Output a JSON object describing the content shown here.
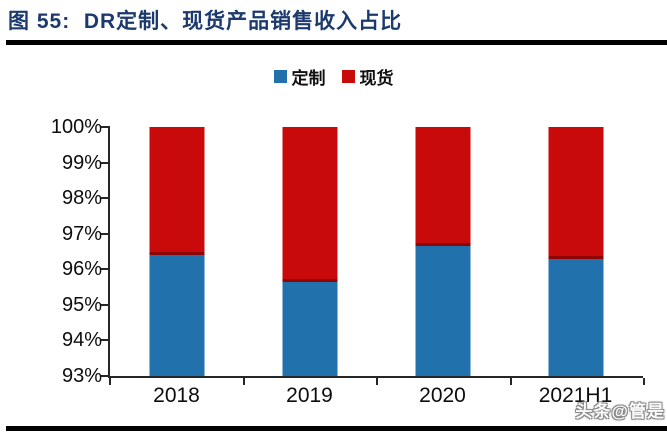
{
  "figure": {
    "title": "图 55:  DR定制、现货产品销售收入占比"
  },
  "legend": [
    {
      "label": "定制",
      "color": "#2171ad"
    },
    {
      "label": "现货",
      "color": "#c80a0a"
    }
  ],
  "watermark": {
    "text": "头条@管是"
  },
  "colors": {
    "title_navy": "#1c3a6e",
    "rule_black": "#000000",
    "axis": "#262626",
    "dingzhi_blue": "#2171ad",
    "xianhuo_red": "#c80a0a",
    "red_dark_border": "#8f0505"
  },
  "chart_data": {
    "type": "bar",
    "stacked": true,
    "title": "DR定制、现货产品销售收入占比",
    "categories": [
      "2018",
      "2019",
      "2020",
      "2021H1"
    ],
    "series": [
      {
        "name": "定制",
        "color": "#2171ad",
        "values": [
          96.4,
          95.65,
          96.65,
          96.3
        ]
      },
      {
        "name": "现货",
        "color": "#c80a0a",
        "values": [
          3.6,
          4.35,
          3.35,
          3.7
        ]
      }
    ],
    "xlabel": "",
    "ylabel": "",
    "ylim": [
      93,
      100
    ],
    "ytick_step": 1,
    "ytick_labels": [
      "93%",
      "94%",
      "95%",
      "96%",
      "97%",
      "98%",
      "99%",
      "100%"
    ],
    "legend_position": "top",
    "grid": false
  }
}
